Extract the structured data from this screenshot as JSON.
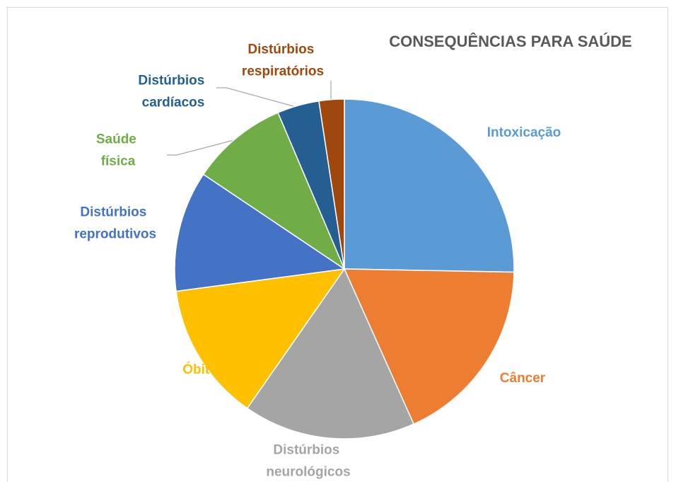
{
  "chart_data": {
    "type": "pie",
    "title": "CONSEQUÊNCIAS PARA SAÚDE",
    "categories": [
      "Intoxicação",
      "Câncer",
      "Distúrbios neurológicos",
      "Óbito",
      "Distúrbios reprodutivos",
      "Saúde física",
      "Distúrbios cardíacos",
      "Distúrbios respiratórios"
    ],
    "values": [
      25.3,
      18,
      16.4,
      13.2,
      11.5,
      9.2,
      4,
      2.4
    ],
    "colors": [
      "#5b9bd5",
      "#ed7d31",
      "#a5a5a5",
      "#ffc000",
      "#4472c4",
      "#70ad47",
      "#255e91",
      "#9e480e"
    ]
  }
}
